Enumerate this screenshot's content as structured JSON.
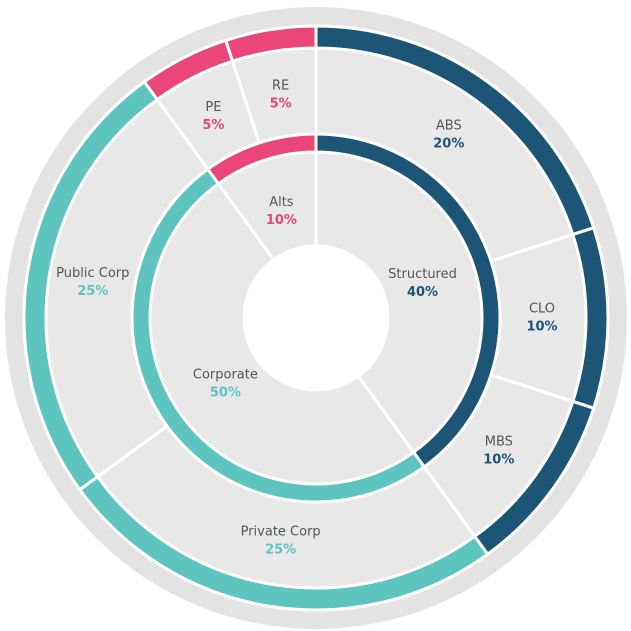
{
  "chart_data": {
    "type": "sunburst",
    "inner": {
      "categories": [
        "Structured",
        "Corporate",
        "Alts"
      ],
      "values": [
        40,
        50,
        10
      ],
      "value_labels": [
        "40%",
        "50%",
        "10%"
      ],
      "colors": [
        "#1d5577",
        "#5ec4bf",
        "#ea4679"
      ]
    },
    "outer": {
      "categories": [
        "ABS",
        "CLO",
        "MBS",
        "Private Corp",
        "Public Corp",
        "PE",
        "RE"
      ],
      "values": [
        20,
        10,
        10,
        25,
        25,
        5,
        5
      ],
      "value_labels": [
        "20%",
        "10%",
        "10%",
        "25%",
        "25%",
        "5%",
        "5%"
      ],
      "colors": [
        "#1d5577",
        "#1d5577",
        "#1d5577",
        "#5ec4bf",
        "#5ec4bf",
        "#ea4679",
        "#ea4679"
      ]
    }
  }
}
